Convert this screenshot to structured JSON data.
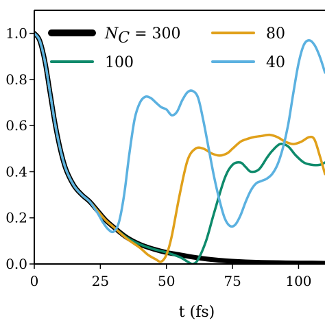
{
  "chart_data": {
    "type": "line",
    "xlabel": "t (fs)",
    "ylabel": "",
    "xlim": [
      0,
      110
    ],
    "ylim": [
      0,
      1.1
    ],
    "grid": false,
    "legend_placement": "top",
    "x_ticks": [
      0,
      25,
      50,
      75,
      100
    ],
    "x_tick_labels": [
      "0",
      "25",
      "50",
      "75",
      "100"
    ],
    "y_ticks": [
      0,
      0.2,
      0.4,
      0.6,
      0.8,
      1.0
    ],
    "y_tick_labels": [
      "0.0",
      "0.2",
      "0.4",
      "0.6",
      "0.8",
      "1.0"
    ],
    "series": [
      {
        "name": "300",
        "legend_prefix": "N",
        "legend_sub": "C",
        "legend_eq": " = ",
        "color": "#000000",
        "stroke_width": 7,
        "x": [
          0,
          2,
          4,
          6,
          8,
          10,
          12,
          15,
          18,
          21,
          24,
          27,
          30,
          35,
          40,
          45,
          50,
          55,
          60,
          65,
          70,
          75,
          80,
          85,
          90,
          95,
          100,
          105,
          110
        ],
        "y": [
          1.0,
          0.97,
          0.88,
          0.74,
          0.6,
          0.49,
          0.41,
          0.34,
          0.3,
          0.27,
          0.23,
          0.19,
          0.16,
          0.115,
          0.085,
          0.065,
          0.05,
          0.04,
          0.03,
          0.022,
          0.016,
          0.012,
          0.009,
          0.007,
          0.006,
          0.005,
          0.004,
          0.004,
          0.003
        ]
      },
      {
        "name": "100",
        "color": "#0e8a6b",
        "stroke_width": 3.5,
        "x": [
          0,
          2,
          4,
          6,
          8,
          10,
          12,
          15,
          18,
          21,
          24,
          27,
          30,
          35,
          40,
          45,
          50,
          55,
          58,
          60,
          62,
          65,
          68,
          72,
          75,
          78,
          80,
          82,
          85,
          88,
          90,
          93,
          96,
          99,
          102,
          105,
          108,
          110
        ],
        "y": [
          1.0,
          0.97,
          0.88,
          0.74,
          0.6,
          0.49,
          0.41,
          0.34,
          0.3,
          0.27,
          0.23,
          0.19,
          0.16,
          0.115,
          0.085,
          0.065,
          0.05,
          0.03,
          0.01,
          0.0,
          0.02,
          0.1,
          0.22,
          0.37,
          0.43,
          0.44,
          0.42,
          0.4,
          0.41,
          0.46,
          0.49,
          0.52,
          0.51,
          0.47,
          0.44,
          0.43,
          0.43,
          0.44
        ]
      },
      {
        "name": "80",
        "color": "#e0a01a",
        "stroke_width": 3.5,
        "x": [
          0,
          2,
          4,
          6,
          8,
          10,
          12,
          15,
          18,
          21,
          24,
          27,
          30,
          35,
          40,
          43,
          46,
          48,
          50,
          52,
          55,
          58,
          61,
          64,
          67,
          70,
          73,
          75,
          78,
          80,
          83,
          86,
          89,
          92,
          95,
          98,
          101,
          104,
          106,
          108,
          110
        ],
        "y": [
          1.0,
          0.97,
          0.88,
          0.74,
          0.6,
          0.49,
          0.41,
          0.34,
          0.3,
          0.27,
          0.23,
          0.19,
          0.16,
          0.11,
          0.07,
          0.04,
          0.02,
          0.01,
          0.04,
          0.12,
          0.3,
          0.45,
          0.5,
          0.5,
          0.48,
          0.47,
          0.48,
          0.5,
          0.53,
          0.54,
          0.55,
          0.555,
          0.56,
          0.55,
          0.53,
          0.52,
          0.53,
          0.55,
          0.54,
          0.47,
          0.39
        ]
      },
      {
        "name": "40",
        "color": "#5bb1e0",
        "stroke_width": 3.5,
        "x": [
          0,
          2,
          4,
          6,
          8,
          10,
          12,
          15,
          18,
          21,
          24,
          26,
          28,
          30,
          32,
          34,
          36,
          38,
          40,
          42,
          44,
          46,
          48,
          50,
          52,
          54,
          56,
          58,
          60,
          62,
          64,
          66,
          68,
          70,
          72,
          74,
          76,
          78,
          80,
          82,
          84,
          86,
          88,
          90,
          92,
          94,
          96,
          98,
          100,
          102,
          104,
          106,
          108,
          110
        ],
        "y": [
          1.0,
          0.97,
          0.88,
          0.74,
          0.6,
          0.49,
          0.41,
          0.34,
          0.3,
          0.27,
          0.22,
          0.18,
          0.15,
          0.14,
          0.18,
          0.3,
          0.48,
          0.63,
          0.7,
          0.725,
          0.72,
          0.7,
          0.68,
          0.67,
          0.645,
          0.66,
          0.71,
          0.745,
          0.75,
          0.72,
          0.62,
          0.5,
          0.38,
          0.28,
          0.2,
          0.165,
          0.17,
          0.21,
          0.27,
          0.32,
          0.35,
          0.36,
          0.37,
          0.39,
          0.43,
          0.5,
          0.6,
          0.74,
          0.87,
          0.95,
          0.97,
          0.95,
          0.9,
          0.83
        ]
      }
    ]
  }
}
